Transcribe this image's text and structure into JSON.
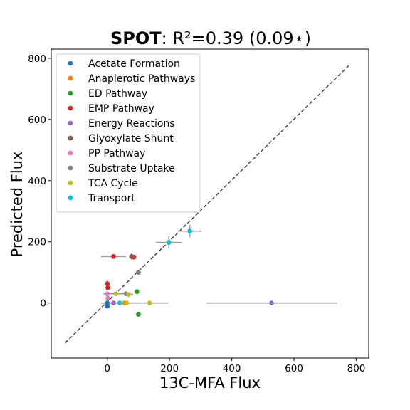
{
  "chart_data": {
    "type": "scatter",
    "title_bold": "SPOT",
    "title_rest": ": R²=0.39 (0.09⋆)",
    "xlabel": "13C-MFA Flux",
    "ylabel": "Predicted Flux",
    "xlim": [
      -180,
      840
    ],
    "ylim": [
      -180,
      830
    ],
    "xticks": [
      0,
      200,
      400,
      600,
      800
    ],
    "yticks": [
      0,
      200,
      400,
      600,
      800
    ],
    "xtick_labels": [
      "0",
      "200",
      "400",
      "600",
      "800"
    ],
    "ytick_labels": [
      "0",
      "200",
      "400",
      "600",
      "800"
    ],
    "grid": false,
    "legend_position": "upper-left",
    "identity_line": {
      "from": [
        -135,
        -130
      ],
      "to": [
        780,
        780
      ],
      "style": "dashed"
    },
    "series": [
      {
        "name": "Acetate Formation",
        "color": "#1f77b4",
        "points": [
          {
            "x": 0,
            "y": -10,
            "xerr": 0,
            "yerr": 0
          },
          {
            "x": 0,
            "y": 0,
            "xerr": 0,
            "yerr": 0
          }
        ]
      },
      {
        "name": "Anaplerotic Pathways",
        "color": "#ff7f0e",
        "points": [
          {
            "x": 55,
            "y": 0,
            "xerr": 0,
            "yerr": 0
          }
        ]
      },
      {
        "name": "ED Pathway",
        "color": "#2ca02c",
        "points": [
          {
            "x": 95,
            "y": 37,
            "xerr": 0,
            "yerr": 8
          },
          {
            "x": 100,
            "y": -37,
            "xerr": 0,
            "yerr": 8
          }
        ]
      },
      {
        "name": "EMP Pathway",
        "color": "#d62728",
        "points": [
          {
            "x": 20,
            "y": 152,
            "xerr": 40,
            "yerr": 0
          },
          {
            "x": 85,
            "y": 150,
            "xerr": 0,
            "yerr": 0
          },
          {
            "x": 0,
            "y": 63,
            "xerr": 0,
            "yerr": 10
          },
          {
            "x": 2,
            "y": 50,
            "xerr": 0,
            "yerr": 0
          }
        ]
      },
      {
        "name": "Energy Reactions",
        "color": "#9467bd",
        "points": [
          {
            "x": 528,
            "y": 0,
            "xerr": 210,
            "yerr": 0
          },
          {
            "x": 20,
            "y": 0,
            "xerr": 0,
            "yerr": 0
          }
        ]
      },
      {
        "name": "Glyoxylate Shunt",
        "color": "#8c564b",
        "points": [
          {
            "x": 78,
            "y": 152,
            "xerr": 0,
            "yerr": 10
          }
        ]
      },
      {
        "name": "PP Pathway",
        "color": "#e377c2",
        "points": [
          {
            "x": 0,
            "y": 30,
            "xerr": 0,
            "yerr": 0
          },
          {
            "x": 2,
            "y": 15,
            "xerr": 0,
            "yerr": 0
          }
        ]
      },
      {
        "name": "Substrate Uptake",
        "color": "#7f7f7f",
        "points": [
          {
            "x": 100,
            "y": 100,
            "xerr": 0,
            "yerr": 0
          },
          {
            "x": 60,
            "y": 30,
            "xerr": 0,
            "yerr": 0
          }
        ]
      },
      {
        "name": "TCA Cycle",
        "color": "#bcbd22",
        "points": [
          {
            "x": 27,
            "y": 30,
            "xerr": 40,
            "yerr": 0
          },
          {
            "x": 68,
            "y": 28,
            "xerr": 15,
            "yerr": 0
          },
          {
            "x": 136,
            "y": 0,
            "xerr": 60,
            "yerr": 0
          },
          {
            "x": 62,
            "y": 0,
            "xerr": 0,
            "yerr": 0
          }
        ]
      },
      {
        "name": "Transport",
        "color": "#17becf",
        "points": [
          {
            "x": 198,
            "y": 198,
            "xerr": 42,
            "yerr": 20
          },
          {
            "x": 265,
            "y": 235,
            "xerr": 38,
            "yerr": 20
          },
          {
            "x": 40,
            "y": 0,
            "xerr": 60,
            "yerr": 0
          }
        ]
      }
    ]
  }
}
